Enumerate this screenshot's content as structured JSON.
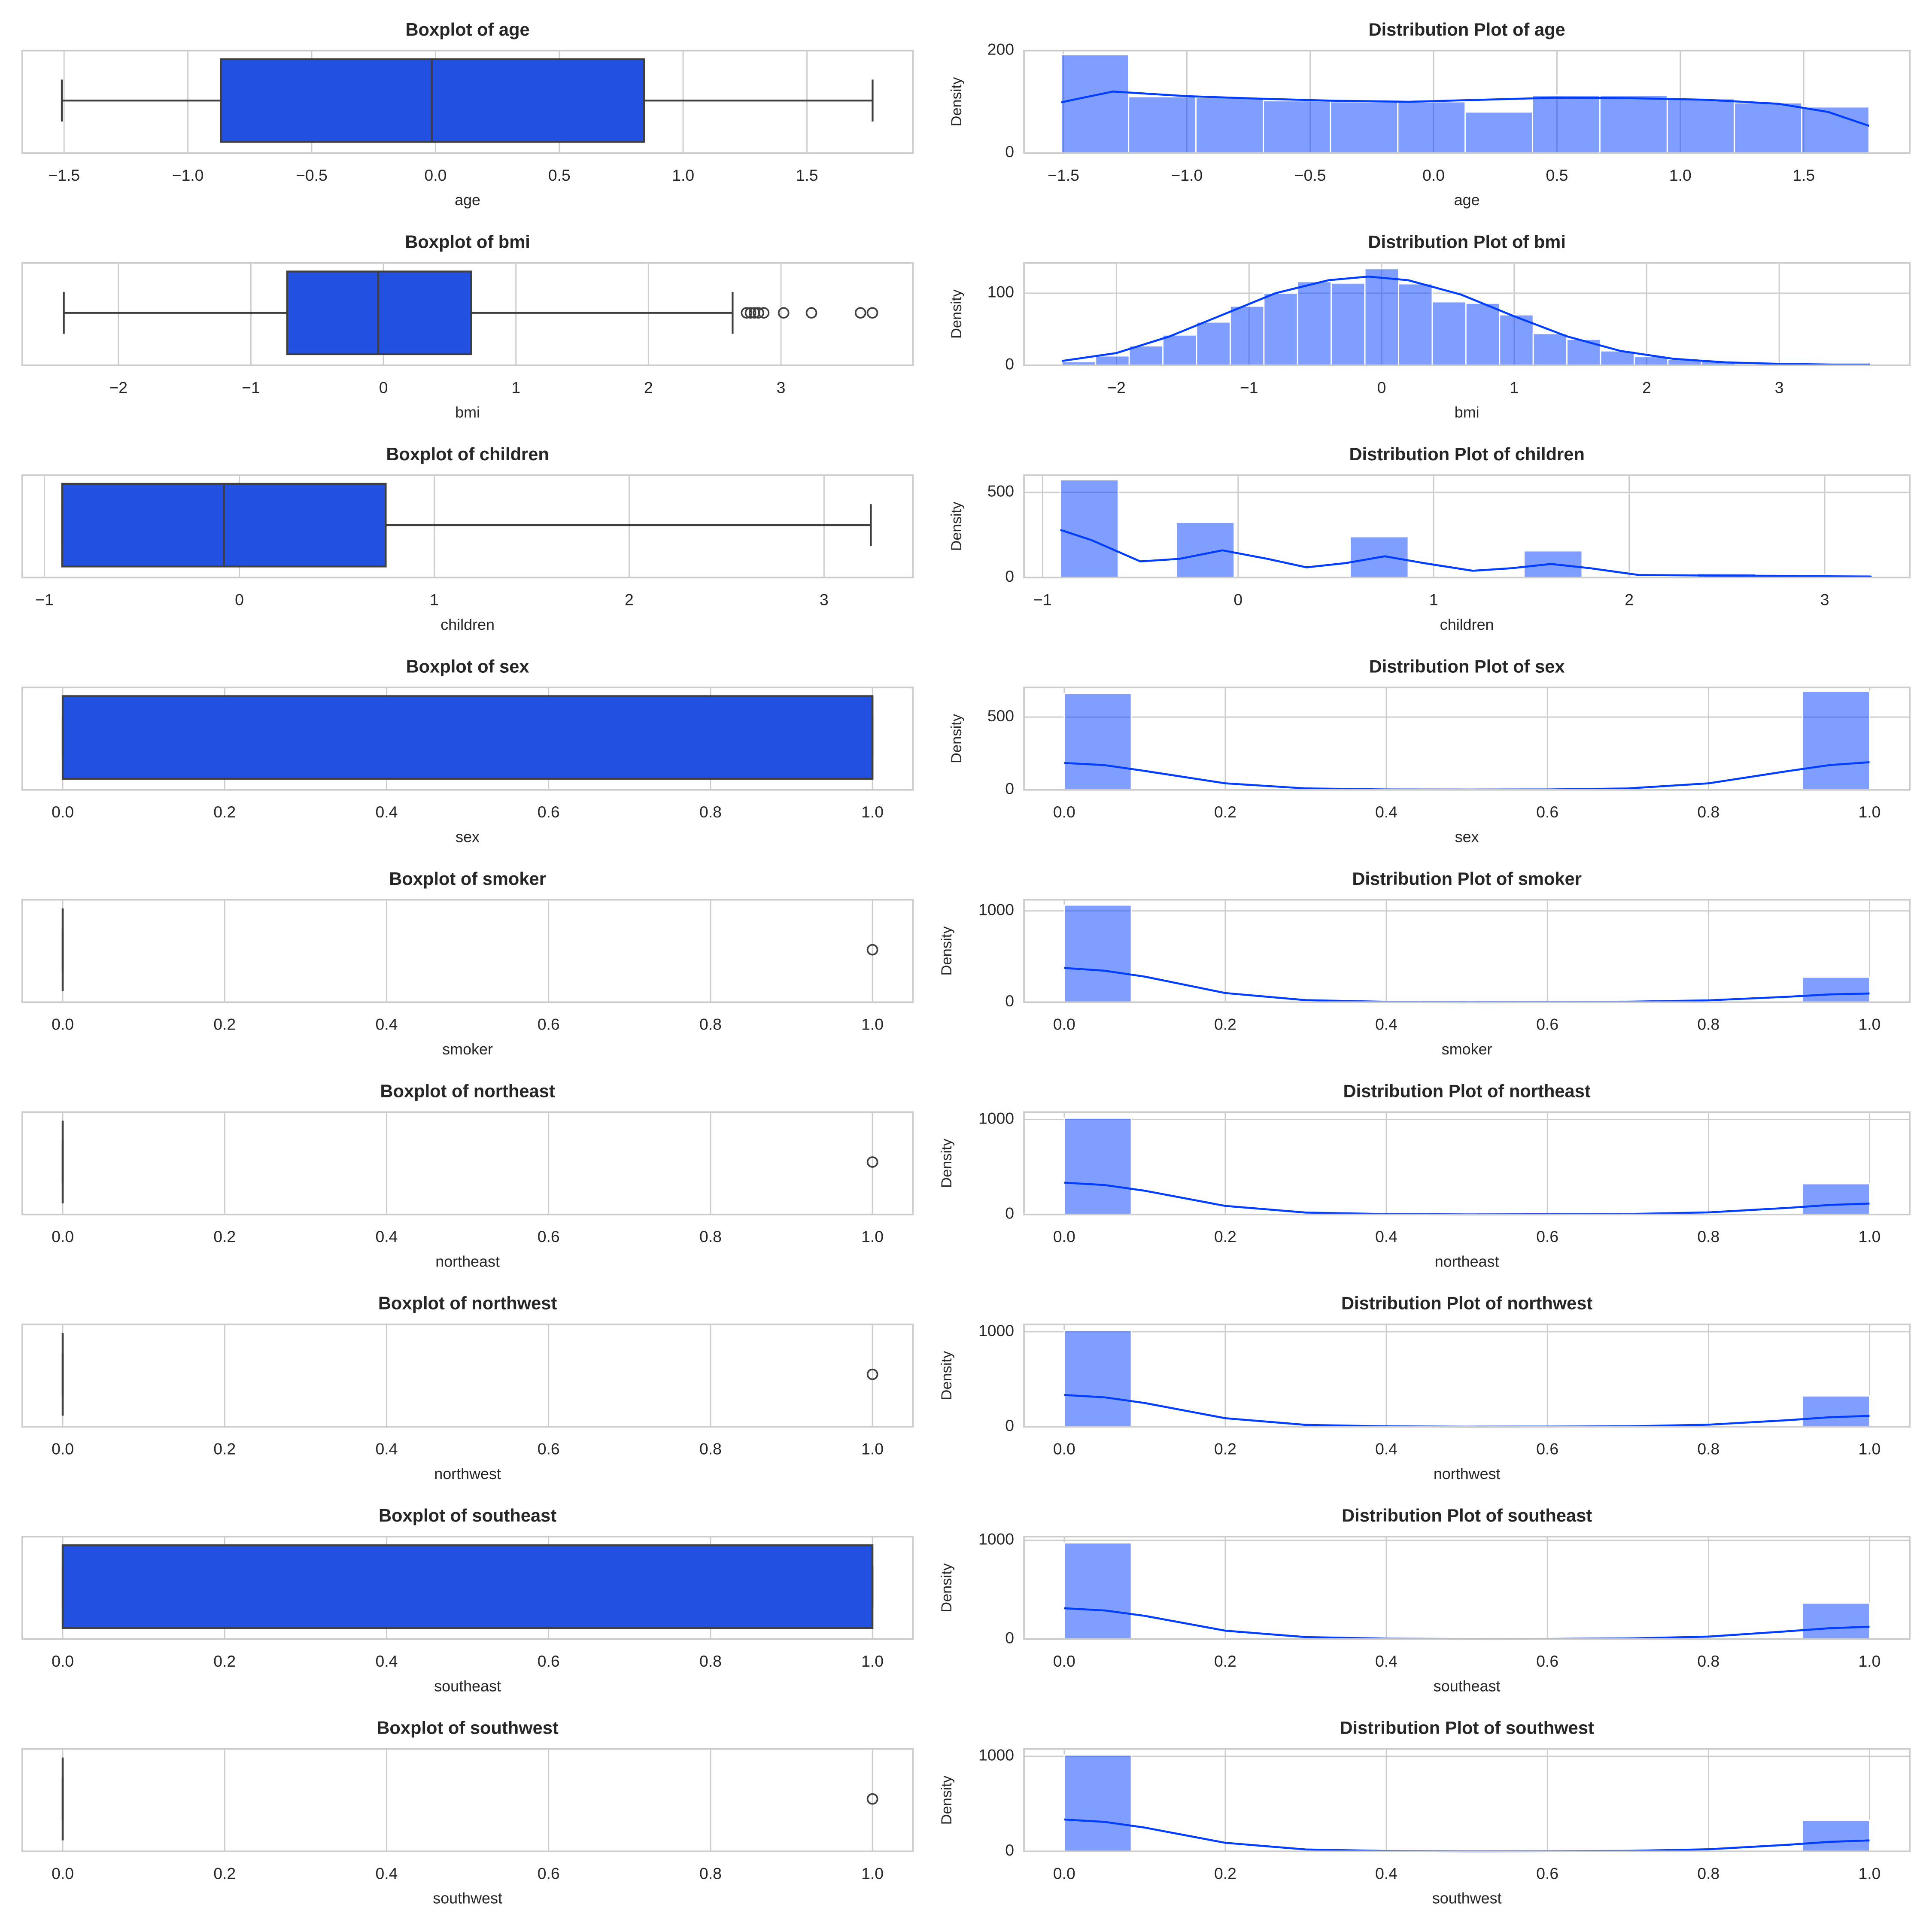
{
  "chart_data": [
    {
      "type": "box",
      "title": "Boxplot of age",
      "xlabel": "age",
      "color": "#2251e1",
      "xlim": [
        -1.669,
        1.928
      ],
      "xticks": [
        {
          "value": -1.5,
          "label": "−1.5"
        },
        {
          "value": -1,
          "label": "−1.0"
        },
        {
          "value": -0.5,
          "label": "−0.5"
        },
        {
          "value": 0,
          "label": "0.0"
        },
        0.5,
        {
          "value": 1,
          "label": "1.0"
        },
        1.5
      ],
      "whislo": -1.509,
      "q1": -0.867,
      "median": -0.015,
      "q3": 0.842,
      "whishi": 1.765,
      "fliers": []
    },
    {
      "type": "histogram",
      "title": "Distribution Plot of age",
      "xlabel": "age",
      "ylabel": "Density",
      "color": "#023eff",
      "xlim": [
        -1.66,
        1.93
      ],
      "xticks": [
        {
          "value": -1.5,
          "label": "−1.5"
        },
        {
          "value": -1,
          "label": "−1.0"
        },
        {
          "value": -0.5,
          "label": "−0.5"
        },
        {
          "value": 0,
          "label": "0.0"
        },
        0.5,
        {
          "value": 1,
          "label": "1.0"
        },
        1.5
      ],
      "ylim": [
        0,
        200
      ],
      "yticks": [
        0,
        200
      ],
      "grid": true,
      "bins": [
        -1.509,
        -1.236,
        -0.963,
        -0.69,
        -0.418,
        -0.145,
        0.128,
        0.401,
        0.674,
        0.947,
        1.219,
        1.492,
        1.765
      ],
      "counts": [
        192,
        110,
        108,
        102,
        100,
        100,
        80,
        113,
        113,
        106,
        98,
        90
      ],
      "kde": {
        "x": [
          -1.509,
          -1.3,
          -1.0,
          -0.7,
          -0.4,
          -0.1,
          0.2,
          0.5,
          0.8,
          1.1,
          1.4,
          1.6,
          1.765
        ],
        "values": [
          99,
          120,
          111,
          106,
          102,
          100,
          104,
          108,
          107,
          104,
          96,
          80,
          53
        ]
      }
    },
    {
      "type": "box",
      "title": "Boxplot of bmi",
      "xlabel": "bmi",
      "color": "#2251e1",
      "xlim": [
        -2.726,
        3.996
      ],
      "xticks": [
        {
          "value": -2,
          "label": "−2"
        },
        {
          "value": -1,
          "label": "−1"
        },
        0,
        1,
        2,
        3
      ],
      "whislo": -2.412,
      "q1": -0.726,
      "median": -0.04,
      "q3": 0.661,
      "whishi": 2.635,
      "fliers": [
        2.74,
        2.77,
        2.8,
        2.83,
        2.87,
        3.02,
        3.23,
        3.6,
        3.69
      ]
    },
    {
      "type": "histogram",
      "title": "Distribution Plot of bmi",
      "xlabel": "bmi",
      "ylabel": "Density",
      "color": "#023eff",
      "xlim": [
        -2.698,
        3.985
      ],
      "xticks": [
        {
          "value": -2,
          "label": "−2"
        },
        {
          "value": -1,
          "label": "−1"
        },
        0,
        1,
        2,
        3
      ],
      "ylim": [
        0,
        142
      ],
      "yticks": [
        0,
        100
      ],
      "grid": true,
      "bins": [
        -2.412,
        -2.158,
        -1.904,
        -1.65,
        -1.396,
        -1.142,
        -0.888,
        -0.634,
        -0.38,
        -0.126,
        0.128,
        0.382,
        0.636,
        0.89,
        1.144,
        1.398,
        1.652,
        1.906,
        2.16,
        2.414,
        2.668,
        2.922,
        3.176,
        3.43,
        3.685
      ],
      "counts": [
        5,
        13,
        27,
        42,
        60,
        82,
        100,
        116,
        114,
        134,
        113,
        88,
        86,
        70,
        44,
        36,
        20,
        12,
        8,
        6,
        2,
        1,
        0,
        2
      ],
      "kde": {
        "x": [
          -2.412,
          -2.0,
          -1.6,
          -1.2,
          -0.8,
          -0.4,
          -0.1,
          0.2,
          0.6,
          1.0,
          1.4,
          1.8,
          2.2,
          2.6,
          3.0,
          3.4,
          3.685
        ],
        "values": [
          6,
          17,
          40,
          70,
          100,
          118,
          123,
          118,
          98,
          68,
          40,
          20,
          9,
          4,
          2,
          1,
          1
        ]
      }
    },
    {
      "type": "box",
      "title": "Boxplot of children",
      "xlabel": "children",
      "color": "#2251e1",
      "xlim": [
        -1.114,
        3.456
      ],
      "xticks": [
        {
          "value": -1,
          "label": "−1"
        },
        0,
        1,
        2,
        3
      ],
      "whislo": -0.909,
      "q1": -0.909,
      "median": -0.079,
      "q3": 0.751,
      "whishi": 3.24,
      "fliers": []
    },
    {
      "type": "histogram",
      "title": "Distribution Plot of children",
      "xlabel": "children",
      "ylabel": "Density",
      "color": "#023eff",
      "xlim": [
        -1.095,
        3.435
      ],
      "xticks": [
        {
          "value": -1,
          "label": "−1"
        },
        0,
        1,
        2,
        3
      ],
      "ylim": [
        0,
        601
      ],
      "yticks": [
        0,
        500
      ],
      "grid": true,
      "bins": [
        -0.909,
        -0.613,
        -0.316,
        -0.02,
        0.277,
        0.573,
        0.87,
        1.166,
        1.462,
        1.759,
        2.055,
        2.351,
        2.648,
        2.944,
        3.24
      ],
      "counts": [
        574,
        0,
        324,
        0,
        0,
        240,
        0,
        0,
        157,
        0,
        0,
        25,
        0,
        18
      ],
      "kde": {
        "x": [
          -0.909,
          -0.75,
          -0.5,
          -0.3,
          -0.08,
          0.15,
          0.35,
          0.55,
          0.75,
          0.95,
          1.2,
          1.4,
          1.6,
          1.8,
          2.05,
          2.4,
          2.8,
          3.24
        ],
        "values": [
          280,
          220,
          95,
          110,
          160,
          110,
          60,
          85,
          125,
          85,
          40,
          55,
          80,
          55,
          15,
          12,
          10,
          5
        ]
      }
    },
    {
      "type": "box",
      "title": "Boxplot of sex",
      "xlabel": "sex",
      "color": "#2251e1",
      "xlim": [
        -0.05,
        1.05
      ],
      "xticks": [
        {
          "value": 0,
          "label": "0.0"
        },
        0.2,
        0.4,
        0.6,
        0.8,
        {
          "value": 1,
          "label": "1.0"
        }
      ],
      "whislo": 0,
      "q1": 0,
      "median": 1,
      "q3": 1,
      "whishi": 1,
      "fliers": []
    },
    {
      "type": "histogram",
      "title": "Distribution Plot of sex",
      "xlabel": "sex",
      "ylabel": "Density",
      "color": "#023eff",
      "xlim": [
        -0.05,
        1.05
      ],
      "xticks": [
        {
          "value": 0,
          "label": "0.0"
        },
        0.2,
        0.4,
        0.6,
        0.8,
        {
          "value": 1,
          "label": "1.0"
        }
      ],
      "ylim": [
        0,
        703
      ],
      "yticks": [
        0,
        500
      ],
      "grid": true,
      "bins": [
        0,
        0.0833,
        0.1667,
        0.25,
        0.3333,
        0.4167,
        0.5,
        0.5833,
        0.6667,
        0.75,
        0.8333,
        0.9167,
        1
      ],
      "counts": [
        662,
        0,
        0,
        0,
        0,
        0,
        0,
        0,
        0,
        0,
        0,
        676
      ],
      "kde": {
        "x": [
          0,
          0.05,
          0.1,
          0.2,
          0.3,
          0.4,
          0.5,
          0.6,
          0.7,
          0.8,
          0.9,
          0.95,
          1
        ],
        "values": [
          185,
          170,
          130,
          45,
          10,
          3,
          2,
          3,
          10,
          45,
          130,
          170,
          190
        ]
      }
    },
    {
      "type": "box",
      "title": "Boxplot of smoker",
      "xlabel": "smoker",
      "color": "#2251e1",
      "xlim": [
        -0.05,
        1.05
      ],
      "xticks": [
        {
          "value": 0,
          "label": "0.0"
        },
        0.2,
        0.4,
        0.6,
        0.8,
        {
          "value": 1,
          "label": "1.0"
        }
      ],
      "whislo": 0,
      "q1": 0,
      "median": 0,
      "q3": 0,
      "whishi": 0,
      "fliers": [
        1
      ]
    },
    {
      "type": "histogram",
      "title": "Distribution Plot of smoker",
      "xlabel": "smoker",
      "ylabel": "Density",
      "color": "#023eff",
      "xlim": [
        -0.05,
        1.05
      ],
      "xticks": [
        {
          "value": 0,
          "label": "0.0"
        },
        0.2,
        0.4,
        0.6,
        0.8,
        {
          "value": 1,
          "label": "1.0"
        }
      ],
      "ylim": [
        0,
        1122
      ],
      "yticks": [
        0,
        1000
      ],
      "grid": true,
      "bins": [
        0,
        0.0833,
        0.1667,
        0.25,
        0.3333,
        0.4167,
        0.5,
        0.5833,
        0.6667,
        0.75,
        0.8333,
        0.9167,
        1
      ],
      "counts": [
        1064,
        0,
        0,
        0,
        0,
        0,
        0,
        0,
        0,
        0,
        0,
        274
      ],
      "kde": {
        "x": [
          0,
          0.05,
          0.1,
          0.2,
          0.3,
          0.4,
          0.5,
          0.6,
          0.7,
          0.8,
          0.9,
          0.95,
          1
        ],
        "values": [
          375,
          345,
          280,
          100,
          22,
          4,
          1,
          2,
          5,
          20,
          60,
          85,
          95
        ]
      }
    },
    {
      "type": "box",
      "title": "Boxplot of northeast",
      "xlabel": "northeast",
      "color": "#2251e1",
      "xlim": [
        -0.05,
        1.05
      ],
      "xticks": [
        {
          "value": 0,
          "label": "0.0"
        },
        0.2,
        0.4,
        0.6,
        0.8,
        {
          "value": 1,
          "label": "1.0"
        }
      ],
      "whislo": 0,
      "q1": 0,
      "median": 0,
      "q3": 0,
      "whishi": 0,
      "fliers": [
        1
      ]
    },
    {
      "type": "histogram",
      "title": "Distribution Plot of northeast",
      "xlabel": "northeast",
      "ylabel": "Density",
      "color": "#023eff",
      "xlim": [
        -0.05,
        1.05
      ],
      "xticks": [
        {
          "value": 0,
          "label": "0.0"
        },
        0.2,
        0.4,
        0.6,
        0.8,
        {
          "value": 1,
          "label": "1.0"
        }
      ],
      "ylim": [
        0,
        1078
      ],
      "yticks": [
        0,
        1000
      ],
      "grid": true,
      "bins": [
        0,
        0.0833,
        0.1667,
        0.25,
        0.3333,
        0.4167,
        0.5,
        0.5833,
        0.6667,
        0.75,
        0.8333,
        0.9167,
        1
      ],
      "counts": [
        1014,
        0,
        0,
        0,
        0,
        0,
        0,
        0,
        0,
        0,
        0,
        324
      ],
      "kde": {
        "x": [
          0,
          0.05,
          0.1,
          0.2,
          0.3,
          0.4,
          0.5,
          0.6,
          0.7,
          0.8,
          0.9,
          0.95,
          1
        ],
        "values": [
          335,
          310,
          250,
          90,
          20,
          4,
          1,
          2,
          5,
          22,
          70,
          100,
          115
        ]
      }
    },
    {
      "type": "box",
      "title": "Boxplot of northwest",
      "xlabel": "northwest",
      "color": "#2251e1",
      "xlim": [
        -0.05,
        1.05
      ],
      "xticks": [
        {
          "value": 0,
          "label": "0.0"
        },
        0.2,
        0.4,
        0.6,
        0.8,
        {
          "value": 1,
          "label": "1.0"
        }
      ],
      "whislo": 0,
      "q1": 0,
      "median": 0,
      "q3": 0,
      "whishi": 0,
      "fliers": [
        1
      ]
    },
    {
      "type": "histogram",
      "title": "Distribution Plot of northwest",
      "xlabel": "northwest",
      "ylabel": "Density",
      "color": "#023eff",
      "xlim": [
        -0.05,
        1.05
      ],
      "xticks": [
        {
          "value": 0,
          "label": "0.0"
        },
        0.2,
        0.4,
        0.6,
        0.8,
        {
          "value": 1,
          "label": "1.0"
        }
      ],
      "ylim": [
        0,
        1078
      ],
      "yticks": [
        0,
        1000
      ],
      "grid": true,
      "bins": [
        0,
        0.0833,
        0.1667,
        0.25,
        0.3333,
        0.4167,
        0.5,
        0.5833,
        0.6667,
        0.75,
        0.8333,
        0.9167,
        1
      ],
      "counts": [
        1013,
        0,
        0,
        0,
        0,
        0,
        0,
        0,
        0,
        0,
        0,
        325
      ],
      "kde": {
        "x": [
          0,
          0.05,
          0.1,
          0.2,
          0.3,
          0.4,
          0.5,
          0.6,
          0.7,
          0.8,
          0.9,
          0.95,
          1
        ],
        "values": [
          335,
          310,
          250,
          90,
          20,
          4,
          1,
          2,
          5,
          22,
          70,
          100,
          115
        ]
      }
    },
    {
      "type": "box",
      "title": "Boxplot of southeast",
      "xlabel": "southeast",
      "color": "#2251e1",
      "xlim": [
        -0.05,
        1.05
      ],
      "xticks": [
        {
          "value": 0,
          "label": "0.0"
        },
        0.2,
        0.4,
        0.6,
        0.8,
        {
          "value": 1,
          "label": "1.0"
        }
      ],
      "whislo": 0,
      "q1": 0,
      "median": 0,
      "q3": 1,
      "whishi": 1,
      "fliers": []
    },
    {
      "type": "histogram",
      "title": "Distribution Plot of southeast",
      "xlabel": "southeast",
      "ylabel": "Density",
      "color": "#023eff",
      "xlim": [
        -0.05,
        1.05
      ],
      "xticks": [
        {
          "value": 0,
          "label": "0.0"
        },
        0.2,
        0.4,
        0.6,
        0.8,
        {
          "value": 1,
          "label": "1.0"
        }
      ],
      "ylim": [
        0,
        1037
      ],
      "yticks": [
        0,
        1000
      ],
      "grid": true,
      "bins": [
        0,
        0.0833,
        0.1667,
        0.25,
        0.3333,
        0.4167,
        0.5,
        0.5833,
        0.6667,
        0.75,
        0.8333,
        0.9167,
        1
      ],
      "counts": [
        974,
        0,
        0,
        0,
        0,
        0,
        0,
        0,
        0,
        0,
        0,
        364
      ],
      "kde": {
        "x": [
          0,
          0.05,
          0.1,
          0.2,
          0.3,
          0.4,
          0.5,
          0.6,
          0.7,
          0.8,
          0.9,
          0.95,
          1
        ],
        "values": [
          312,
          290,
          235,
          85,
          20,
          4,
          1,
          2,
          6,
          25,
          80,
          110,
          125
        ]
      }
    },
    {
      "type": "box",
      "title": "Boxplot of southwest",
      "xlabel": "southwest",
      "color": "#2251e1",
      "xlim": [
        -0.05,
        1.05
      ],
      "xticks": [
        {
          "value": 0,
          "label": "0.0"
        },
        0.2,
        0.4,
        0.6,
        0.8,
        {
          "value": 1,
          "label": "1.0"
        }
      ],
      "whislo": 0,
      "q1": 0,
      "median": 0,
      "q3": 0,
      "whishi": 0,
      "fliers": [
        1
      ]
    },
    {
      "type": "histogram",
      "title": "Distribution Plot of southwest",
      "xlabel": "southwest",
      "ylabel": "Density",
      "color": "#023eff",
      "xlim": [
        -0.05,
        1.05
      ],
      "xticks": [
        {
          "value": 0,
          "label": "0.0"
        },
        0.2,
        0.4,
        0.6,
        0.8,
        {
          "value": 1,
          "label": "1.0"
        }
      ],
      "ylim": [
        0,
        1077
      ],
      "yticks": [
        0,
        1000
      ],
      "grid": true,
      "bins": [
        0,
        0.0833,
        0.1667,
        0.25,
        0.3333,
        0.4167,
        0.5,
        0.5833,
        0.6667,
        0.75,
        0.8333,
        0.9167,
        1
      ],
      "counts": [
        1013,
        0,
        0,
        0,
        0,
        0,
        0,
        0,
        0,
        0,
        0,
        325
      ],
      "kde": {
        "x": [
          0,
          0.05,
          0.1,
          0.2,
          0.3,
          0.4,
          0.5,
          0.6,
          0.7,
          0.8,
          0.9,
          0.95,
          1
        ],
        "values": [
          335,
          310,
          250,
          90,
          20,
          4,
          1,
          2,
          5,
          22,
          70,
          100,
          115
        ]
      }
    }
  ]
}
